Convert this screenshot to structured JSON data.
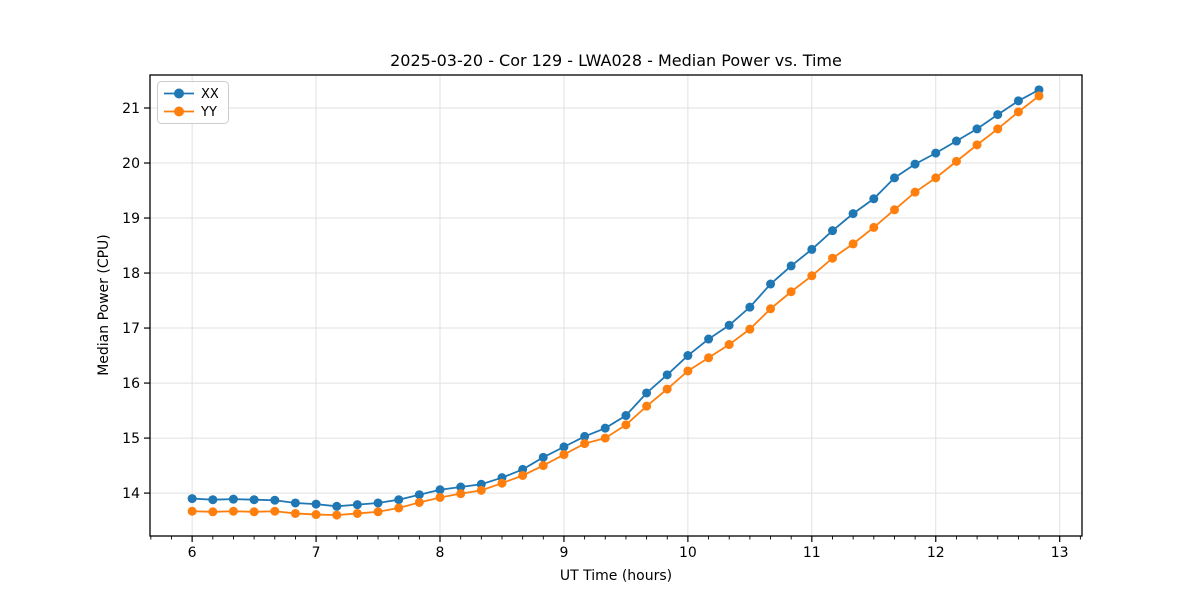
{
  "chart_data": {
    "type": "line",
    "title": "2025-03-20 - Cor 129 - LWA028 - Median Power vs. Time",
    "xlabel": "UT Time (hours)",
    "ylabel": "Median Power (CPU)",
    "xlim": [
      5.66,
      13.18
    ],
    "ylim": [
      13.22,
      21.6
    ],
    "xticks": [
      6,
      7,
      8,
      9,
      10,
      11,
      12,
      13
    ],
    "yticks": [
      14,
      15,
      16,
      17,
      18,
      19,
      20,
      21
    ],
    "x_minor_step": 0.16667,
    "grid": true,
    "legend_position": "upper-left",
    "background_color": "#ffffff",
    "grid_color": "#e1e1e1",
    "spine_color": "#000000",
    "x": [
      6.0,
      6.167,
      6.333,
      6.5,
      6.667,
      6.833,
      7.0,
      7.167,
      7.333,
      7.5,
      7.667,
      7.833,
      8.0,
      8.167,
      8.333,
      8.5,
      8.667,
      8.833,
      9.0,
      9.167,
      9.333,
      9.5,
      9.667,
      9.833,
      10.0,
      10.167,
      10.333,
      10.5,
      10.667,
      10.833,
      11.0,
      11.167,
      11.333,
      11.5,
      11.667,
      11.833,
      12.0,
      12.167,
      12.333,
      12.5,
      12.667,
      12.833
    ],
    "series": [
      {
        "name": "XX",
        "color": "#1f77b4",
        "values": [
          13.9,
          13.88,
          13.89,
          13.88,
          13.87,
          13.82,
          13.8,
          13.76,
          13.79,
          13.82,
          13.88,
          13.97,
          14.06,
          14.11,
          14.16,
          14.28,
          14.43,
          14.65,
          14.84,
          15.03,
          15.18,
          15.41,
          15.82,
          16.15,
          16.5,
          16.8,
          17.05,
          17.38,
          17.8,
          18.13,
          18.43,
          18.77,
          19.08,
          19.35,
          19.73,
          19.98,
          20.18,
          20.4,
          20.62,
          20.88,
          21.13,
          21.33
        ]
      },
      {
        "name": "YY",
        "color": "#ff7f0e",
        "values": [
          13.67,
          13.66,
          13.67,
          13.66,
          13.67,
          13.63,
          13.61,
          13.6,
          13.63,
          13.66,
          13.73,
          13.83,
          13.92,
          13.99,
          14.05,
          14.18,
          14.32,
          14.5,
          14.7,
          14.9,
          15.0,
          15.24,
          15.58,
          15.89,
          16.22,
          16.46,
          16.7,
          16.98,
          17.35,
          17.66,
          17.95,
          18.27,
          18.53,
          18.83,
          19.15,
          19.47,
          19.73,
          20.03,
          20.33,
          20.62,
          20.93,
          21.22
        ]
      }
    ]
  }
}
